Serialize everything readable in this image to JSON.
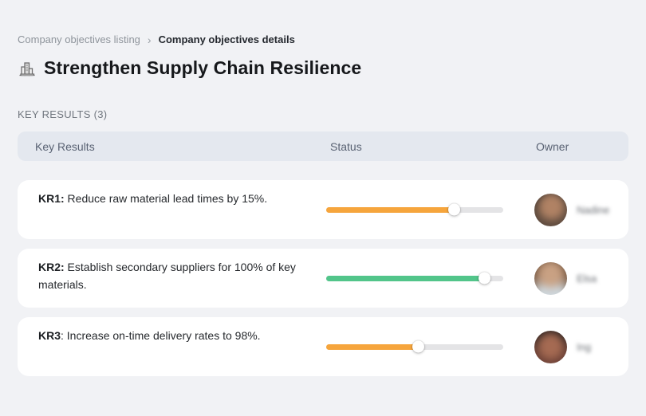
{
  "breadcrumb": {
    "items": [
      {
        "label": "Company objectives listing"
      },
      {
        "label": "Company objectives details"
      }
    ],
    "separator": "›"
  },
  "header": {
    "icon": "company-buildings-icon",
    "title": "Strengthen Supply Chain Resilience"
  },
  "section": {
    "label": "KEY RESULTS (3)"
  },
  "table": {
    "columns": [
      "Key Results",
      "Status",
      "Owner"
    ],
    "rows": [
      {
        "kr_label": "KR1:",
        "kr_text": " Reduce raw material lead times by 15%.",
        "status": {
          "percent": 72,
          "color": "#F6A53C"
        },
        "owner": {
          "name": "Nadine",
          "blurred": true
        }
      },
      {
        "kr_label": "KR2:",
        "kr_text": " Establish secondary suppliers for 100% of key materials.",
        "status": {
          "percent": 89,
          "color": "#52C58A"
        },
        "owner": {
          "name": "Elsa",
          "blurred": true
        }
      },
      {
        "kr_label": "KR3",
        "kr_text": ": Increase on-time delivery rates to 98%.",
        "status": {
          "percent": 52,
          "color": "#F6A53C"
        },
        "owner": {
          "name": "Ing",
          "blurred": true
        }
      }
    ]
  },
  "colors": {
    "page_background": "#f1f2f5",
    "table_header_background": "#e4e8ef",
    "card_background": "#ffffff",
    "progress_track": "#e4e4e6",
    "status_orange": "#F6A53C",
    "status_green": "#52C58A"
  }
}
